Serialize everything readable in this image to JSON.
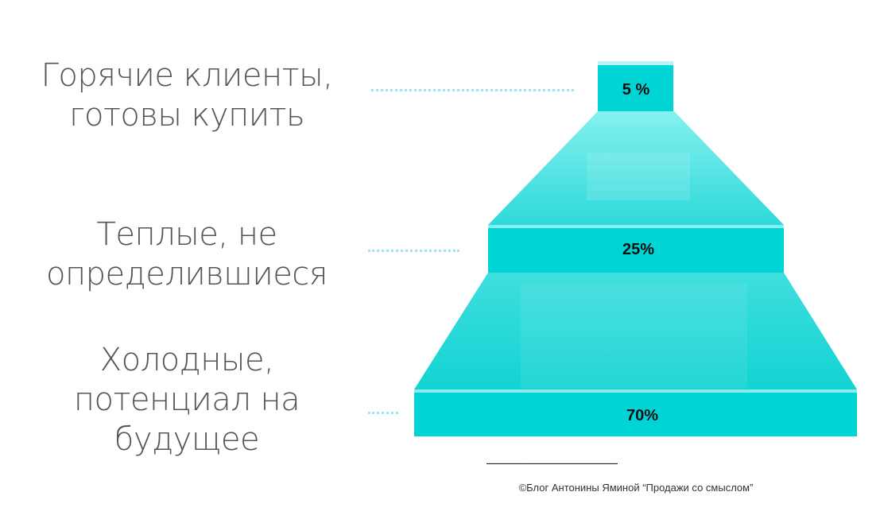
{
  "labels": {
    "hot": {
      "line1": "Горячие клиенты,",
      "line2": "готовы купить"
    },
    "warm": {
      "line1": "Теплые, не",
      "line2": "определившиеся"
    },
    "cold": {
      "line1": "Холодные,",
      "line2": "потенциал на",
      "line3": "будущее"
    }
  },
  "tiers": {
    "hot": {
      "value": "5 %"
    },
    "warm": {
      "value": "25%"
    },
    "cold": {
      "value": "70%"
    }
  },
  "separator": "———————————————————",
  "credit": "©Блог Антонины Яминой “Продажи со смыслом”",
  "colors": {
    "bar": "#00d4d4",
    "slope_top": "#7feeee",
    "slope_bottom": "#18d6d6",
    "label_text": "#555555",
    "dots": "#9fe4ea"
  }
}
